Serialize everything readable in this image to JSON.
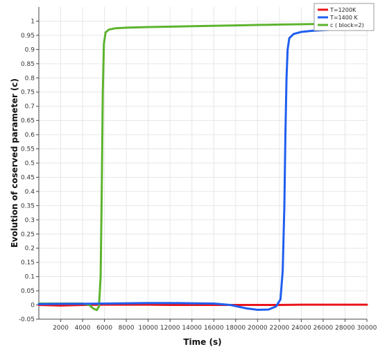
{
  "chart_data": {
    "type": "line",
    "xlabel": "Time (s)",
    "ylabel": "Evolution of coserved parameter (c)",
    "xlim": [
      0,
      30000
    ],
    "ylim": [
      -0.05,
      1.05
    ],
    "grid": true,
    "legend_position": "top-right",
    "x_ticks": [
      2000,
      4000,
      6000,
      8000,
      10000,
      12000,
      14000,
      16000,
      18000,
      20000,
      22000,
      24000,
      26000,
      28000,
      30000
    ],
    "y_ticks": [
      "-0.05",
      "0",
      "0.05",
      "0.1",
      "0.15",
      "0.2",
      "0.25",
      "0.3",
      "0.35",
      "0.4",
      "0.45",
      "0.5",
      "0.55",
      "0.6",
      "0.65",
      "0.7",
      "0.75",
      "0.8",
      "0.85",
      "0.9",
      "0.95",
      "1"
    ],
    "series": [
      {
        "name": "T=1200K",
        "color": "#e8141a",
        "x": [
          0,
          2000,
          4000,
          6000,
          8000,
          10000,
          12000,
          14000,
          16000,
          18000,
          20000,
          22000,
          24000,
          26000,
          28000,
          30000
        ],
        "y": [
          0.0,
          -0.002,
          0.0,
          0.001,
          0.001,
          0.001,
          0.0,
          0.0,
          0.0,
          0.0,
          0.0,
          0.0,
          0.001,
          0.001,
          0.001,
          0.001
        ]
      },
      {
        "name": "T=1400 K",
        "color": "#1f5ef0",
        "x": [
          0,
          2000,
          4000,
          6000,
          8000,
          10000,
          12000,
          14000,
          16000,
          17500,
          19000,
          20000,
          21000,
          21700,
          22100,
          22300,
          22450,
          22550,
          22650,
          22750,
          22900,
          23300,
          24000,
          25000,
          26000,
          28000,
          30000
        ],
        "y": [
          0.003,
          0.004,
          0.004,
          0.005,
          0.006,
          0.007,
          0.007,
          0.006,
          0.005,
          0.0,
          -0.012,
          -0.017,
          -0.016,
          -0.005,
          0.02,
          0.12,
          0.35,
          0.6,
          0.8,
          0.9,
          0.94,
          0.955,
          0.962,
          0.966,
          0.968,
          0.972,
          0.974
        ]
      },
      {
        "name": "c ( block=2)",
        "color": "#5db32e",
        "x": [
          0,
          2000,
          4000,
          4600,
          5000,
          5300,
          5500,
          5650,
          5750,
          5850,
          5950,
          6100,
          6400,
          7000,
          8000,
          10000,
          14000,
          18000,
          22000,
          26000,
          28500
        ],
        "y": [
          0.005,
          0.005,
          0.005,
          0.0,
          -0.013,
          -0.018,
          -0.005,
          0.1,
          0.4,
          0.75,
          0.92,
          0.96,
          0.97,
          0.975,
          0.977,
          0.979,
          0.982,
          0.985,
          0.988,
          0.99,
          0.991
        ]
      }
    ]
  }
}
